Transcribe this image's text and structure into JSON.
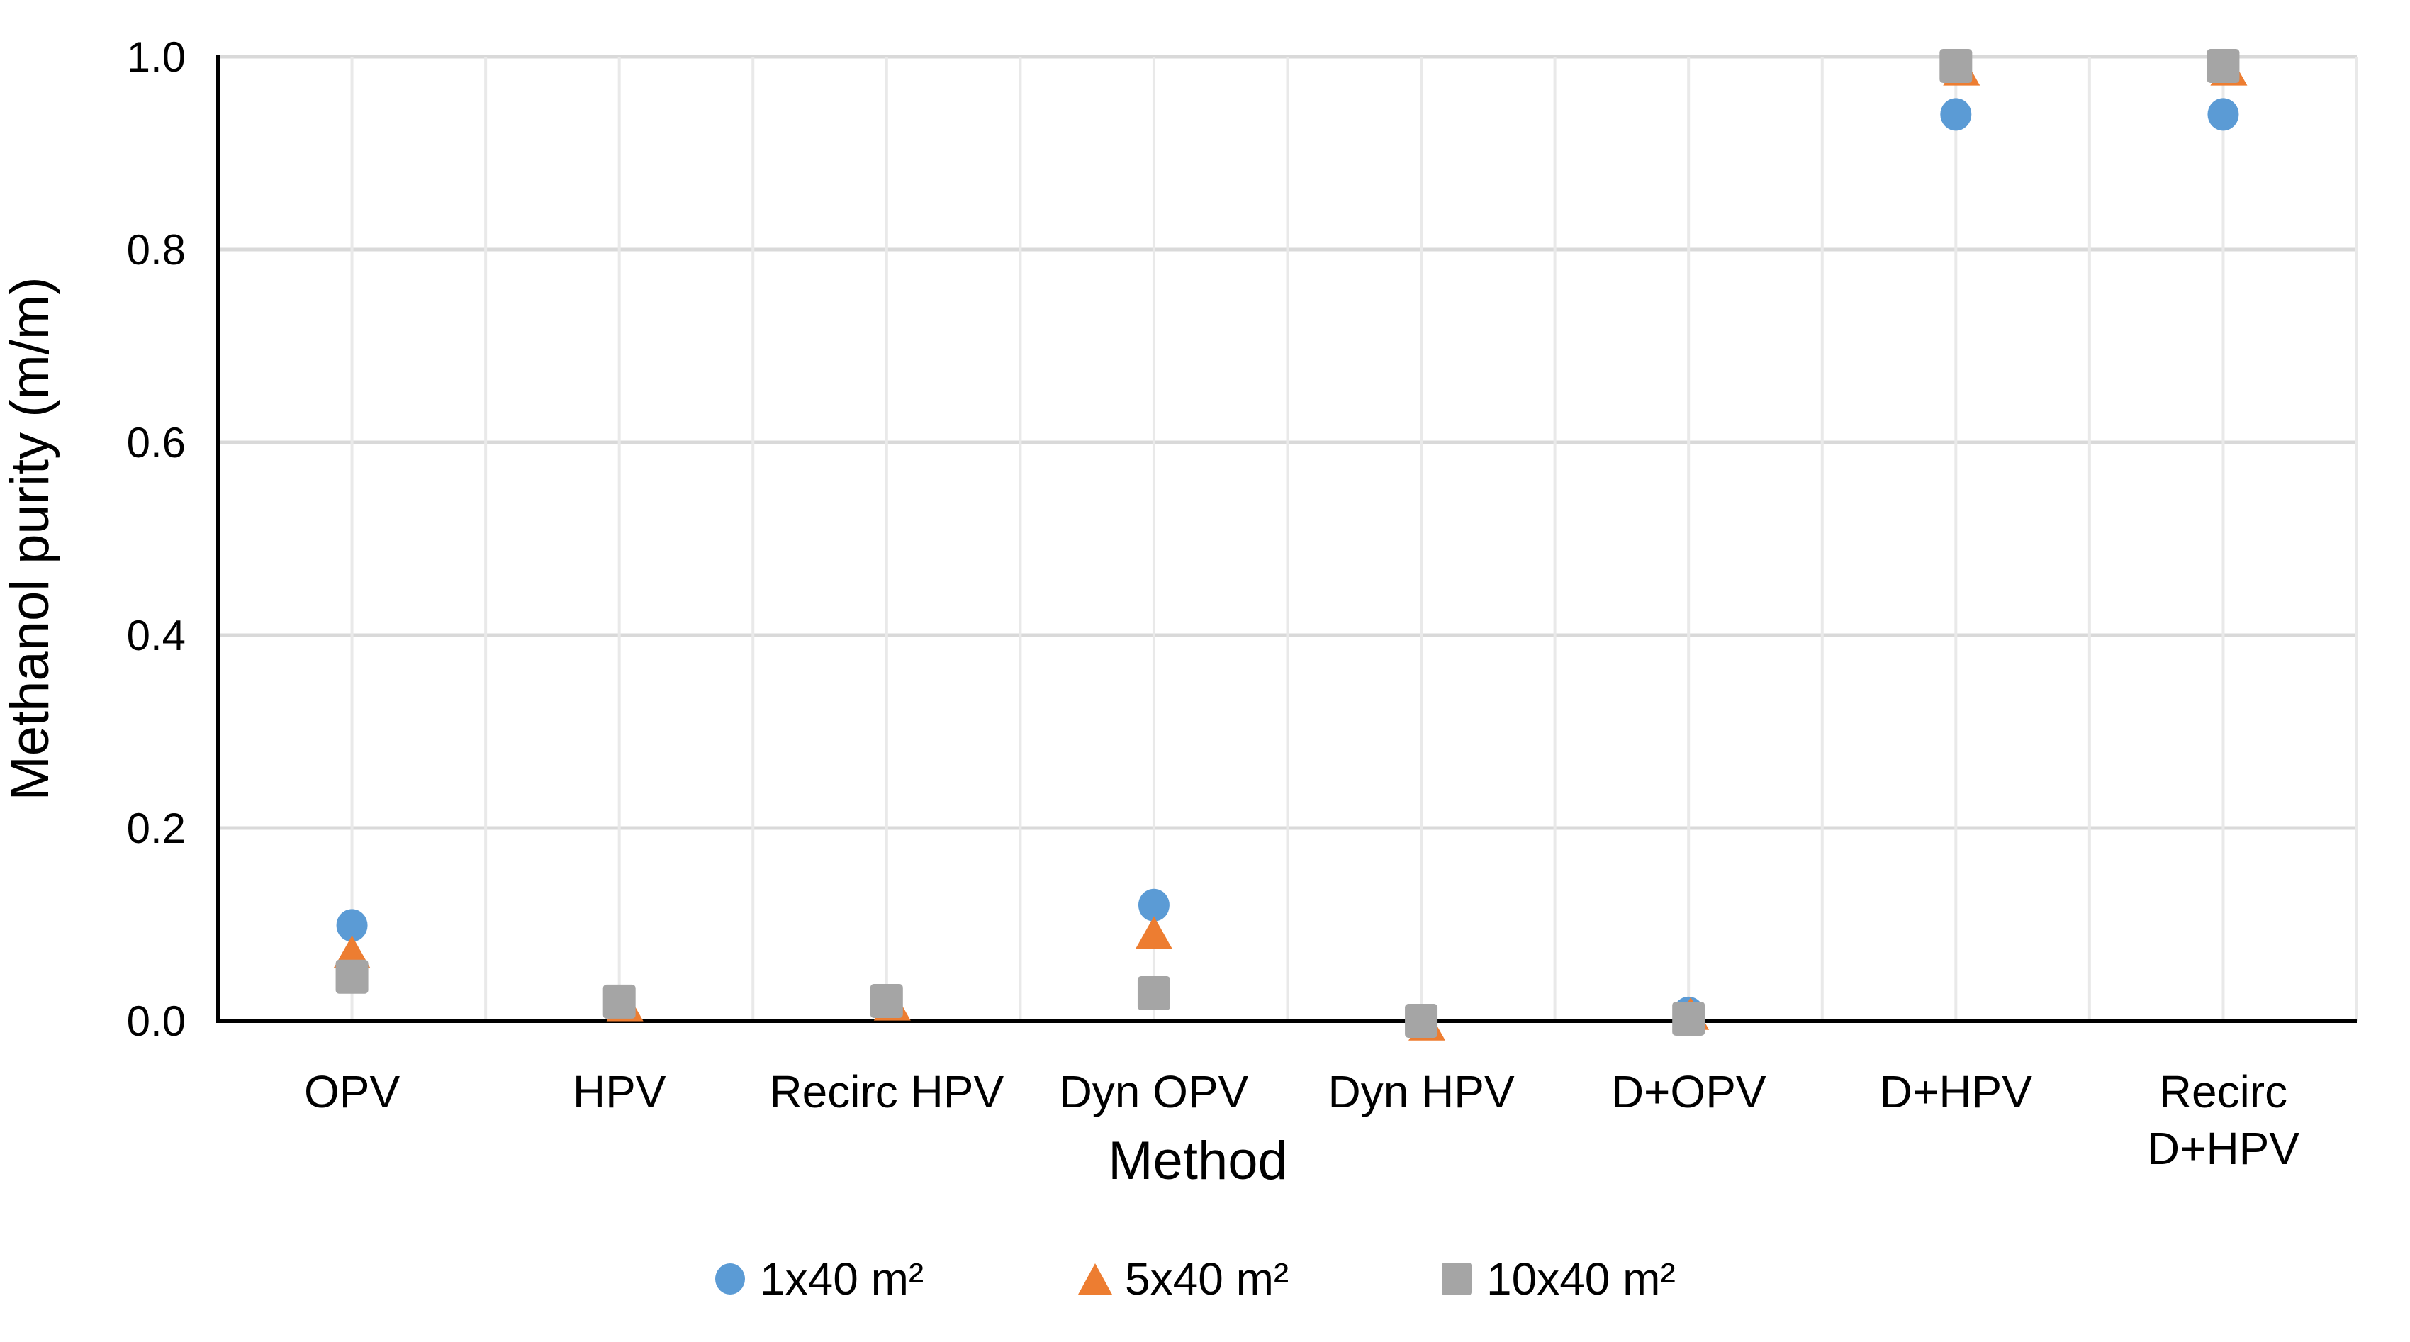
{
  "chart_data": {
    "type": "scatter",
    "title": "",
    "xlabel": "Method",
    "ylabel": "Methanol purity (m/m)",
    "ylim": [
      0.0,
      1.0
    ],
    "ytick_labels": [
      "1.0",
      "0.8",
      "0.6",
      "0.4",
      "0.2",
      "0.0"
    ],
    "ytick_values": [
      1.0,
      0.8,
      0.6,
      0.4,
      0.2,
      0.0
    ],
    "grid": true,
    "legend_position": "bottom-center",
    "categories": [
      "OPV",
      "HPV",
      "Recirc HPV",
      "Dyn OPV",
      "Dyn HPV",
      "D+OPV",
      "D+HPV",
      "Recirc D+HPV"
    ],
    "category_label_lines": [
      [
        "OPV"
      ],
      [
        "HPV"
      ],
      [
        "Recirc HPV"
      ],
      [
        "Dyn OPV"
      ],
      [
        "Dyn HPV"
      ],
      [
        "D+OPV"
      ],
      [
        "D+HPV"
      ],
      [
        "Recirc",
        "D+HPV"
      ]
    ],
    "series": [
      {
        "name": "1x40 m²",
        "marker": "circle",
        "color": "#5B9BD5",
        "values": [
          0.1,
          null,
          null,
          0.12,
          null,
          0.01,
          0.94,
          0.94
        ]
      },
      {
        "name": "5x40 m²",
        "marker": "triangle",
        "color": "#ED7D31",
        "values": [
          0.07,
          0.02,
          0.02,
          0.09,
          0.0,
          0.01,
          0.99,
          0.99
        ],
        "visibility_note": "clearly visible only at OPV and Dyn OPV; at other methods the triangle is almost fully hidden behind the gray 10x40 m² square (only a small corner peeks out)"
      },
      {
        "name": "10x40 m²",
        "marker": "square",
        "color": "#A5A5A5",
        "values": [
          0.045,
          0.02,
          0.02,
          0.03,
          0.0,
          0.005,
          0.99,
          0.99
        ]
      }
    ],
    "render_points": [
      {
        "series": 0,
        "cat": 0,
        "v": 0.099
      },
      {
        "series": 0,
        "cat": 3,
        "v": 0.12
      },
      {
        "series": 0,
        "cat": 5,
        "v": 0.0082
      },
      {
        "series": 0,
        "cat": 6,
        "v": 0.9402
      },
      {
        "series": 0,
        "cat": 7,
        "v": 0.9402
      },
      {
        "series": 1,
        "cat": 0,
        "v": 0.0715
      },
      {
        "series": 1,
        "cat": 1,
        "v": 0.0165,
        "dx": 8
      },
      {
        "series": 1,
        "cat": 2,
        "v": 0.0172,
        "dx": 8
      },
      {
        "series": 1,
        "cat": 3,
        "v": 0.0915
      },
      {
        "series": 1,
        "cat": 4,
        "v": -0.0035,
        "dx": 8
      },
      {
        "series": 1,
        "cat": 5,
        "v": 0.0075,
        "dx": 3
      },
      {
        "series": 1,
        "cat": 6,
        "v": 0.987,
        "dx": 8
      },
      {
        "series": 1,
        "cat": 7,
        "v": 0.987,
        "dx": 8
      },
      {
        "series": 2,
        "cat": 0,
        "v": 0.0458
      },
      {
        "series": 2,
        "cat": 1,
        "v": 0.0199
      },
      {
        "series": 2,
        "cat": 2,
        "v": 0.0206
      },
      {
        "series": 2,
        "cat": 3,
        "v": 0.0287
      },
      {
        "series": 2,
        "cat": 4,
        "v": 0.0
      },
      {
        "series": 2,
        "cat": 5,
        "v": 0.0022
      },
      {
        "series": 2,
        "cat": 6,
        "v": 0.9904
      },
      {
        "series": 2,
        "cat": 7,
        "v": 0.9904
      }
    ]
  },
  "colors": {
    "background": "#FFFFFF",
    "text": "#000000",
    "axis_line": "#000000",
    "gridline_horizontal": "#D9D9D9",
    "gridline_vertical": "#E9E9E9",
    "series_blue": "#5B9BD5",
    "series_orange": "#ED7D31",
    "series_gray": "#A5A5A5"
  }
}
